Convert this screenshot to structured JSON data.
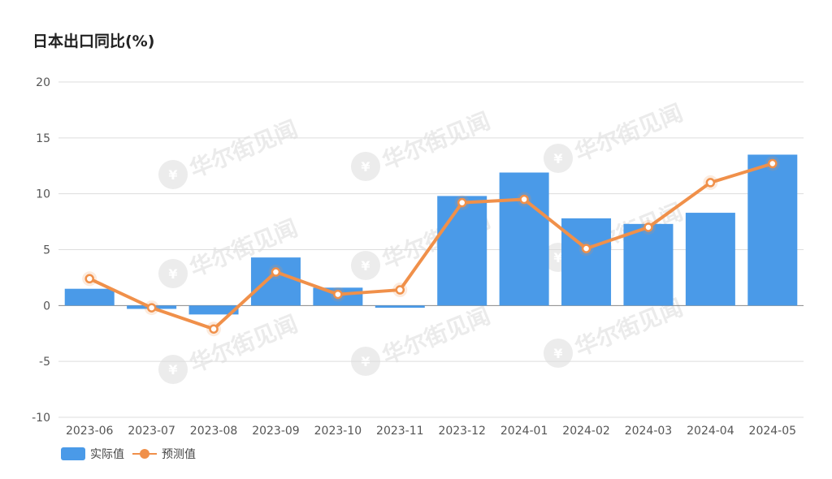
{
  "chart_data": {
    "type": "bar",
    "title": "日本出口同比(%)",
    "xlabel": "",
    "ylabel": "",
    "ylim": [
      -10,
      20
    ],
    "yticks": [
      20,
      15,
      10,
      5,
      0,
      -5,
      -10
    ],
    "grid": true,
    "legend_position": "bottom-left",
    "categories": [
      "2023-06",
      "2023-07",
      "2023-08",
      "2023-09",
      "2023-10",
      "2023-11",
      "2023-12",
      "2024-01",
      "2024-02",
      "2024-03",
      "2024-04",
      "2024-05"
    ],
    "series": [
      {
        "name": "实际值",
        "type": "bar",
        "color": "#4a9ae8",
        "values": [
          1.5,
          -0.3,
          -0.8,
          4.3,
          1.6,
          -0.2,
          9.8,
          11.9,
          7.8,
          7.3,
          8.3,
          13.5
        ]
      },
      {
        "name": "预测值",
        "type": "line",
        "color": "#f0904a",
        "values": [
          2.4,
          -0.2,
          -2.1,
          3.0,
          1.0,
          1.4,
          9.2,
          9.5,
          5.1,
          7.0,
          11.0,
          12.7
        ]
      }
    ]
  },
  "watermark": {
    "text": "华尔街见闻",
    "icon": "wallstreetcn-logo-icon"
  }
}
